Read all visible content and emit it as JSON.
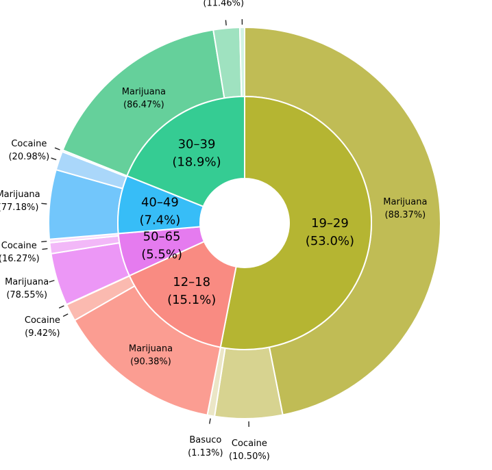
{
  "chart_data": {
    "type": "sunburst",
    "title": "",
    "start_angle_deg": 0,
    "direction": "clockwise",
    "groups": [
      {
        "name": "19–29",
        "percent_label": "(53.0%)",
        "value": 53.0,
        "color": "#b5b532",
        "children": [
          {
            "name": "Marijuana",
            "percent_label": "(88.37%)",
            "percent": 88.37,
            "color": "#c0bc55"
          },
          {
            "name": "Cocaine",
            "percent_label": "(10.50%)",
            "percent": 10.5,
            "color": "#d7d390"
          },
          {
            "name": "Basuco",
            "percent_label": "(1.13%)",
            "percent": 1.13,
            "color": "#ebe6c6"
          }
        ]
      },
      {
        "name": "12–18",
        "percent_label": "(15.1%)",
        "value": 15.1,
        "color": "#f98b82",
        "children": [
          {
            "name": "Marijuana",
            "percent_label": "(90.38%)",
            "percent": 90.38,
            "color": "#fb9d92"
          },
          {
            "name": "Cocaine",
            "percent_label": "(9.42%)",
            "percent": 9.42,
            "color": "#fbbab0"
          },
          {
            "name": "",
            "percent_label": "",
            "percent": 0.2,
            "color": "#fdd9d4"
          }
        ]
      },
      {
        "name": "50–65",
        "percent_label": "(5.5%)",
        "value": 5.5,
        "color": "#e57bef",
        "children": [
          {
            "name": "Marijuana",
            "percent_label": "(78.55%)",
            "percent": 78.55,
            "color": "#ec97f6"
          },
          {
            "name": "Cocaine",
            "percent_label": "(16.27%)",
            "percent": 16.27,
            "color": "#f2b8f8"
          },
          {
            "name": "",
            "percent_label": "",
            "percent": 5.18,
            "color": "#f8dcfb"
          }
        ]
      },
      {
        "name": "40–49",
        "percent_label": "(7.4%)",
        "value": 7.4,
        "color": "#37bdf7",
        "children": [
          {
            "name": "Marijuana",
            "percent_label": "(77.18%)",
            "percent": 77.18,
            "color": "#72c6fb"
          },
          {
            "name": "Cocaine",
            "percent_label": "(20.98%)",
            "percent": 20.98,
            "color": "#aad7fa"
          },
          {
            "name": "",
            "percent_label": "",
            "percent": 1.84,
            "color": "#d6ecfd"
          }
        ]
      },
      {
        "name": "30–39",
        "percent_label": "(18.9%)",
        "value": 18.9,
        "color": "#35cc93",
        "children": [
          {
            "name": "Marijuana",
            "percent_label": "(86.47%)",
            "percent": 86.47,
            "color": "#65d09b"
          },
          {
            "name": "Cocaine",
            "percent_label": "(11.46%)",
            "percent": 11.46,
            "color": "#9fe2c0"
          },
          {
            "name": "",
            "percent_label": "",
            "percent": 2.07,
            "color": "#d2f3e3"
          }
        ]
      }
    ]
  }
}
